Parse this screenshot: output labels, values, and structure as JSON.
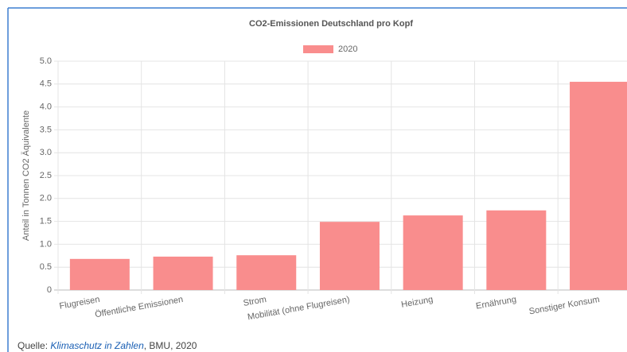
{
  "chart_data": {
    "type": "bar",
    "title": "CO2-Emissionen Deutschland pro Kopf",
    "y_label": "Anteil in Tonnen CO2 Äquivalente",
    "categories": [
      "Flugreisen",
      "Öffentliche Emissionen",
      "Strom",
      "Mobilität (ohne Flugreisen)",
      "Heizung",
      "Ernährung",
      "Sonstiger Konsum"
    ],
    "series": [
      {
        "name": "2020",
        "color": "#f98d8d",
        "values": [
          0.68,
          0.73,
          0.76,
          1.49,
          1.63,
          1.74,
          4.55
        ]
      }
    ],
    "ylim": [
      0,
      5
    ],
    "yticks": [
      0,
      0.5,
      {
        "value": 1,
        "label": "1.0"
      },
      1.5,
      {
        "value": 2,
        "label": "2.0"
      },
      2.5,
      {
        "value": 3,
        "label": "3.0"
      },
      3.5,
      {
        "value": 4,
        "label": "4.0"
      },
      4.5,
      {
        "value": 5,
        "label": "5.0"
      }
    ],
    "grid": true,
    "legend": "top"
  },
  "source": {
    "prefix": "Quelle: ",
    "link": "Klimaschutz in Zahlen",
    "suffix": ", BMU, 2020"
  }
}
